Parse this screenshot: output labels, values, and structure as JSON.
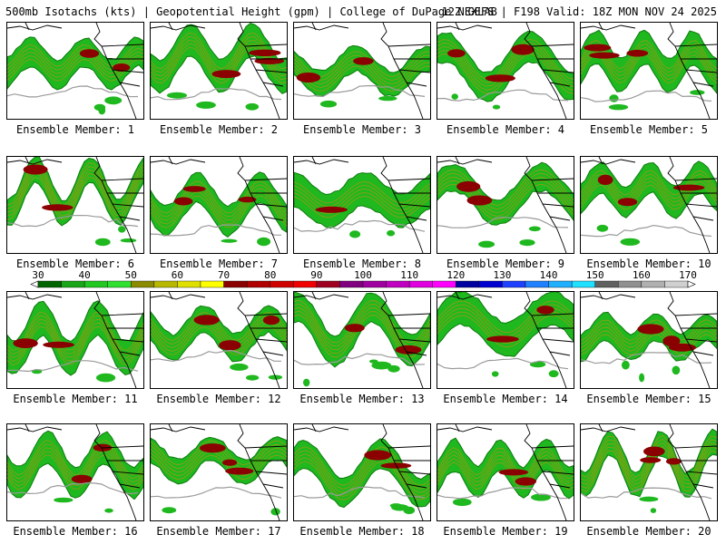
{
  "header": {
    "left": "500mb Isotachs (kts) | Geopotential Height (gpm) | College of DuPage NEXLAB",
    "right": "12Z GEFS | F198 Valid: 18Z MON NOV 24 2025"
  },
  "panel_label_prefix": "Ensemble Member: ",
  "members": [
    1,
    2,
    3,
    4,
    5,
    6,
    7,
    8,
    9,
    10,
    11,
    12,
    13,
    14,
    15,
    16,
    17,
    18,
    19,
    20
  ],
  "colorbar": {
    "ticks": [
      "30",
      "40",
      "50",
      "60",
      "70",
      "80",
      "90",
      "100",
      "110",
      "120",
      "130",
      "140",
      "150",
      "160",
      "170"
    ],
    "colors": [
      "#006400",
      "#19a519",
      "#20c820",
      "#30e030",
      "#8b8b00",
      "#b8b800",
      "#e0e000",
      "#ffff00",
      "#8b0000",
      "#b00000",
      "#d00000",
      "#f00000",
      "#a00020",
      "#800080",
      "#a000a0",
      "#c000c0",
      "#e000e0",
      "#ff00ff",
      "#0000a0",
      "#0000d0",
      "#2040ff",
      "#2080ff",
      "#20b0ff",
      "#20e0ff",
      "#606060",
      "#909090",
      "#b0b0b0",
      "#d0d0d0"
    ]
  },
  "colors": {
    "isotach_green": "#1fb81f",
    "isotach_dark_green": "#0d7a0d",
    "isotach_olive": "#9a9a10",
    "isotach_red": "#8b0000",
    "height_contour": "#9a9a9a",
    "coastline": "#000000"
  }
}
